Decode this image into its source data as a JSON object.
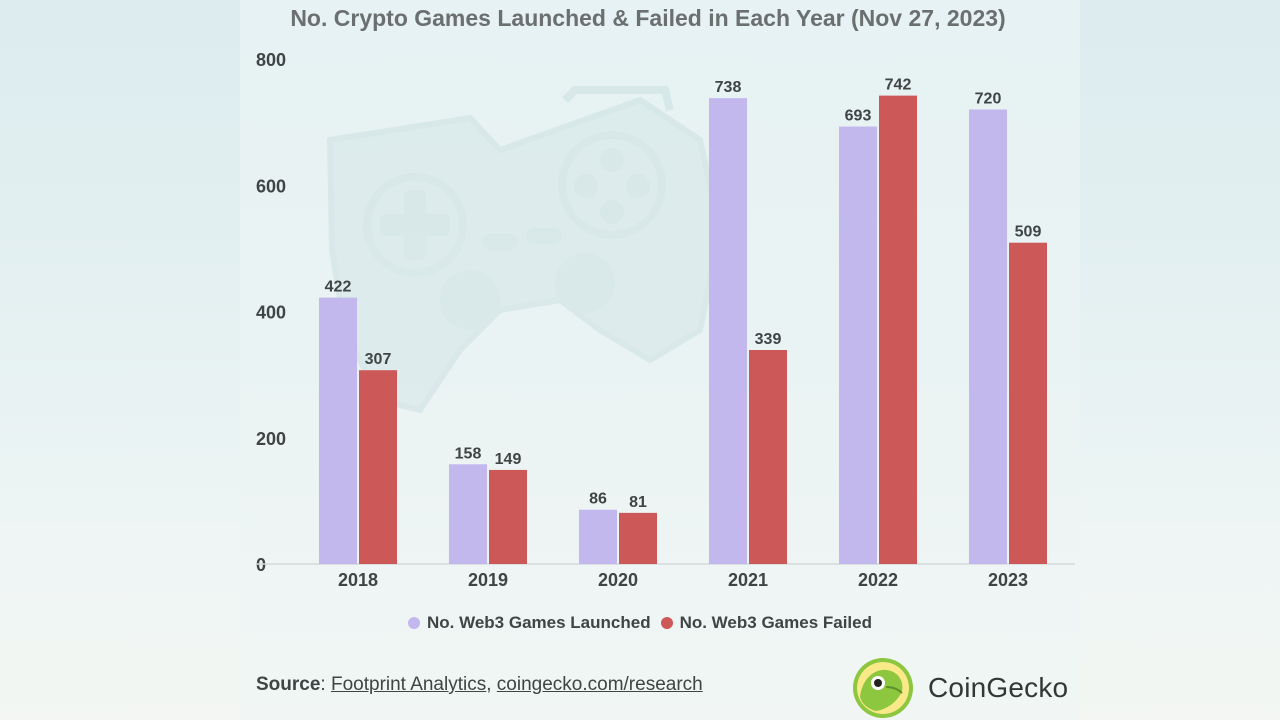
{
  "title": "No. Crypto Games Launched & Failed in Each Year (Nov 27, 2023)",
  "colors": {
    "launched": "#c3b8ee",
    "failed": "#cd5858",
    "axis_text": "#3f4444",
    "label_text": "#3f4444",
    "title_text": "#6b6f70"
  },
  "chart_data": {
    "type": "bar",
    "title": "No. Crypto Games Launched & Failed in Each Year (Nov 27, 2023)",
    "categories": [
      "2018",
      "2019",
      "2020",
      "2021",
      "2022",
      "2023"
    ],
    "series": [
      {
        "name": "No. Web3 Games Launched",
        "values": [
          422,
          158,
          86,
          738,
          693,
          720
        ]
      },
      {
        "name": "No. Web3 Games Failed",
        "values": [
          307,
          149,
          81,
          339,
          742,
          509
        ]
      }
    ],
    "yticks": [
      0,
      200,
      400,
      600,
      800
    ],
    "ylim": [
      0,
      820
    ],
    "xlabel": "",
    "ylabel": "",
    "grid": false,
    "legend_position": "bottom"
  },
  "legend": {
    "launched_label": "No. Web3 Games Launched",
    "failed_label": "No. Web3 Games Failed"
  },
  "source": {
    "label": "Source",
    "sep": ": ",
    "link1": "Footprint Analytics",
    "comma": ", ",
    "link2": "coingecko.com/research"
  },
  "brand": {
    "name": "CoinGecko",
    "logo_icon": "coingecko-logo-icon",
    "watermark_icon": "gamepad-icon"
  }
}
